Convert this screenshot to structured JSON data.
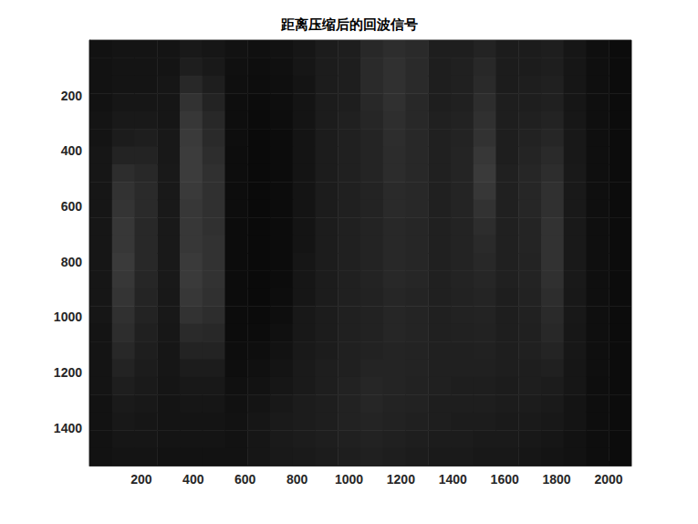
{
  "chart_data": {
    "type": "heatmap",
    "title": "距离压缩后的回波信号",
    "xlim": [
      0,
      2088
    ],
    "ylim": [
      0,
      1536
    ],
    "xticks": [
      200,
      400,
      600,
      800,
      1000,
      1200,
      1400,
      1600,
      1800,
      2000
    ],
    "yticks": [
      200,
      400,
      600,
      800,
      1000,
      1200,
      1400
    ],
    "x_bins": [
      0,
      87,
      174,
      261,
      348,
      435,
      522,
      609,
      696,
      783,
      870,
      957,
      1044,
      1131,
      1218,
      1305,
      1392,
      1479,
      1566,
      1653,
      1740,
      1827,
      1914,
      2001,
      2088
    ],
    "y_bins": [
      0,
      64,
      128,
      192,
      256,
      320,
      384,
      448,
      512,
      576,
      640,
      704,
      768,
      832,
      896,
      960,
      1024,
      1088,
      1152,
      1216,
      1280,
      1344,
      1408,
      1472,
      1536
    ],
    "color_range": [
      0,
      255
    ],
    "colors": [
      "#000000",
      "#ffffff"
    ],
    "values": [
      [
        18,
        20,
        20,
        20,
        25,
        22,
        18,
        16,
        18,
        22,
        28,
        30,
        40,
        45,
        42,
        30,
        30,
        35,
        28,
        28,
        30,
        22,
        15,
        12
      ],
      [
        18,
        20,
        20,
        20,
        30,
        25,
        16,
        14,
        16,
        22,
        28,
        30,
        42,
        48,
        42,
        30,
        32,
        40,
        28,
        28,
        30,
        22,
        15,
        12
      ],
      [
        18,
        20,
        20,
        22,
        40,
        30,
        15,
        13,
        15,
        20,
        28,
        30,
        42,
        48,
        42,
        30,
        32,
        42,
        28,
        30,
        32,
        22,
        15,
        12
      ],
      [
        18,
        22,
        22,
        22,
        50,
        35,
        14,
        12,
        14,
        20,
        28,
        30,
        40,
        48,
        40,
        30,
        32,
        45,
        30,
        30,
        32,
        22,
        15,
        12
      ],
      [
        20,
        25,
        25,
        22,
        55,
        40,
        14,
        11,
        13,
        20,
        28,
        32,
        38,
        46,
        40,
        32,
        34,
        48,
        30,
        32,
        35,
        23,
        15,
        12
      ],
      [
        20,
        28,
        30,
        24,
        58,
        42,
        14,
        10,
        12,
        20,
        28,
        32,
        36,
        45,
        40,
        32,
        35,
        50,
        30,
        34,
        38,
        24,
        15,
        12
      ],
      [
        22,
        35,
        35,
        24,
        60,
        45,
        13,
        10,
        12,
        20,
        28,
        32,
        36,
        44,
        40,
        32,
        36,
        55,
        30,
        36,
        42,
        24,
        15,
        12
      ],
      [
        22,
        45,
        40,
        25,
        60,
        48,
        13,
        10,
        12,
        20,
        28,
        32,
        36,
        44,
        40,
        32,
        36,
        58,
        32,
        38,
        45,
        25,
        15,
        12
      ],
      [
        22,
        50,
        42,
        25,
        58,
        48,
        13,
        10,
        12,
        20,
        28,
        32,
        35,
        42,
        40,
        32,
        36,
        55,
        32,
        38,
        48,
        25,
        15,
        12
      ],
      [
        22,
        52,
        42,
        25,
        55,
        48,
        13,
        10,
        12,
        20,
        28,
        32,
        35,
        42,
        40,
        32,
        36,
        50,
        32,
        38,
        48,
        25,
        15,
        12
      ],
      [
        22,
        55,
        40,
        25,
        55,
        48,
        12,
        10,
        12,
        20,
        28,
        32,
        35,
        40,
        38,
        32,
        35,
        45,
        32,
        36,
        50,
        25,
        15,
        12
      ],
      [
        22,
        55,
        40,
        25,
        55,
        50,
        12,
        10,
        12,
        20,
        28,
        32,
        35,
        40,
        38,
        32,
        35,
        42,
        32,
        36,
        50,
        25,
        15,
        12
      ],
      [
        22,
        58,
        40,
        25,
        58,
        50,
        12,
        10,
        12,
        22,
        28,
        32,
        35,
        40,
        38,
        32,
        35,
        40,
        32,
        35,
        50,
        25,
        15,
        12
      ],
      [
        22,
        55,
        38,
        25,
        58,
        50,
        12,
        10,
        12,
        22,
        28,
        32,
        35,
        40,
        38,
        32,
        35,
        38,
        32,
        35,
        48,
        25,
        15,
        12
      ],
      [
        22,
        52,
        36,
        24,
        55,
        48,
        12,
        10,
        13,
        22,
        28,
        32,
        34,
        38,
        36,
        32,
        34,
        36,
        30,
        34,
        45,
        24,
        15,
        12
      ],
      [
        22,
        48,
        35,
        24,
        50,
        45,
        12,
        11,
        14,
        24,
        28,
        32,
        34,
        38,
        36,
        32,
        34,
        35,
        30,
        33,
        42,
        24,
        15,
        12
      ],
      [
        20,
        45,
        32,
        23,
        42,
        40,
        12,
        12,
        16,
        24,
        28,
        32,
        34,
        38,
        36,
        32,
        33,
        34,
        30,
        32,
        40,
        23,
        15,
        12
      ],
      [
        20,
        40,
        30,
        22,
        35,
        35,
        13,
        14,
        18,
        25,
        28,
        32,
        34,
        36,
        35,
        32,
        32,
        33,
        30,
        32,
        36,
        23,
        15,
        12
      ],
      [
        20,
        35,
        28,
        22,
        28,
        28,
        14,
        16,
        20,
        26,
        30,
        32,
        36,
        36,
        35,
        32,
        32,
        32,
        30,
        30,
        32,
        22,
        15,
        12
      ],
      [
        20,
        30,
        26,
        21,
        24,
        24,
        16,
        18,
        22,
        26,
        30,
        34,
        38,
        36,
        34,
        32,
        30,
        30,
        28,
        30,
        28,
        22,
        14,
        12
      ],
      [
        18,
        26,
        24,
        20,
        22,
        22,
        17,
        20,
        24,
        28,
        30,
        34,
        38,
        35,
        34,
        30,
        30,
        30,
        28,
        28,
        26,
        20,
        14,
        12
      ],
      [
        18,
        24,
        22,
        20,
        20,
        20,
        18,
        22,
        26,
        28,
        30,
        34,
        36,
        34,
        32,
        30,
        28,
        28,
        26,
        26,
        24,
        20,
        14,
        12
      ],
      [
        18,
        22,
        22,
        20,
        20,
        20,
        18,
        22,
        26,
        28,
        30,
        32,
        34,
        32,
        30,
        28,
        28,
        26,
        26,
        24,
        22,
        18,
        14,
        12
      ],
      [
        18,
        20,
        20,
        18,
        18,
        18,
        18,
        22,
        25,
        26,
        28,
        30,
        32,
        30,
        28,
        26,
        26,
        24,
        24,
        22,
        20,
        18,
        14,
        12
      ]
    ]
  }
}
